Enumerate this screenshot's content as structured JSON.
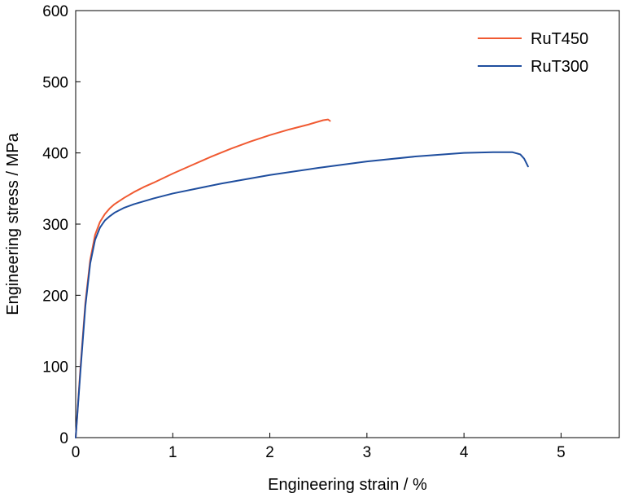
{
  "chart_data": {
    "type": "line",
    "title": "",
    "xlabel": "Engineering strain / %",
    "ylabel": "Engineering stress / MPa",
    "xlim": [
      0,
      5.6
    ],
    "ylim": [
      0,
      600
    ],
    "x_ticks": [
      0,
      1,
      2,
      3,
      4,
      5
    ],
    "y_ticks": [
      0,
      100,
      200,
      300,
      400,
      500,
      600
    ],
    "x_tick_labels": [
      "0",
      "1",
      "2",
      "3",
      "4",
      "5"
    ],
    "y_tick_labels": [
      "0",
      "100",
      "200",
      "300",
      "400",
      "500",
      "600"
    ],
    "grid": false,
    "legend_position": "top-right",
    "series": [
      {
        "name": "RuT450",
        "color": "#f05a32",
        "x": [
          0,
          0.05,
          0.1,
          0.15,
          0.2,
          0.25,
          0.3,
          0.35,
          0.4,
          0.5,
          0.6,
          0.7,
          0.8,
          1.0,
          1.2,
          1.4,
          1.6,
          1.8,
          2.0,
          2.2,
          2.4,
          2.55,
          2.6,
          2.62
        ],
        "y": [
          0,
          100,
          190,
          250,
          285,
          303,
          314,
          322,
          328,
          337,
          345,
          352,
          358,
          371,
          383,
          395,
          406,
          416,
          425,
          433,
          440,
          446,
          447,
          445
        ]
      },
      {
        "name": "RuT300",
        "color": "#1f4e9e",
        "x": [
          0,
          0.05,
          0.1,
          0.15,
          0.2,
          0.25,
          0.3,
          0.35,
          0.4,
          0.5,
          0.6,
          0.8,
          1.0,
          1.5,
          2.0,
          2.5,
          3.0,
          3.5,
          4.0,
          4.3,
          4.5,
          4.58,
          4.62,
          4.66
        ],
        "y": [
          0,
          95,
          185,
          245,
          278,
          295,
          305,
          311,
          316,
          323,
          328,
          336,
          343,
          357,
          369,
          379,
          388,
          395,
          400,
          401,
          401,
          398,
          392,
          381
        ]
      }
    ]
  }
}
